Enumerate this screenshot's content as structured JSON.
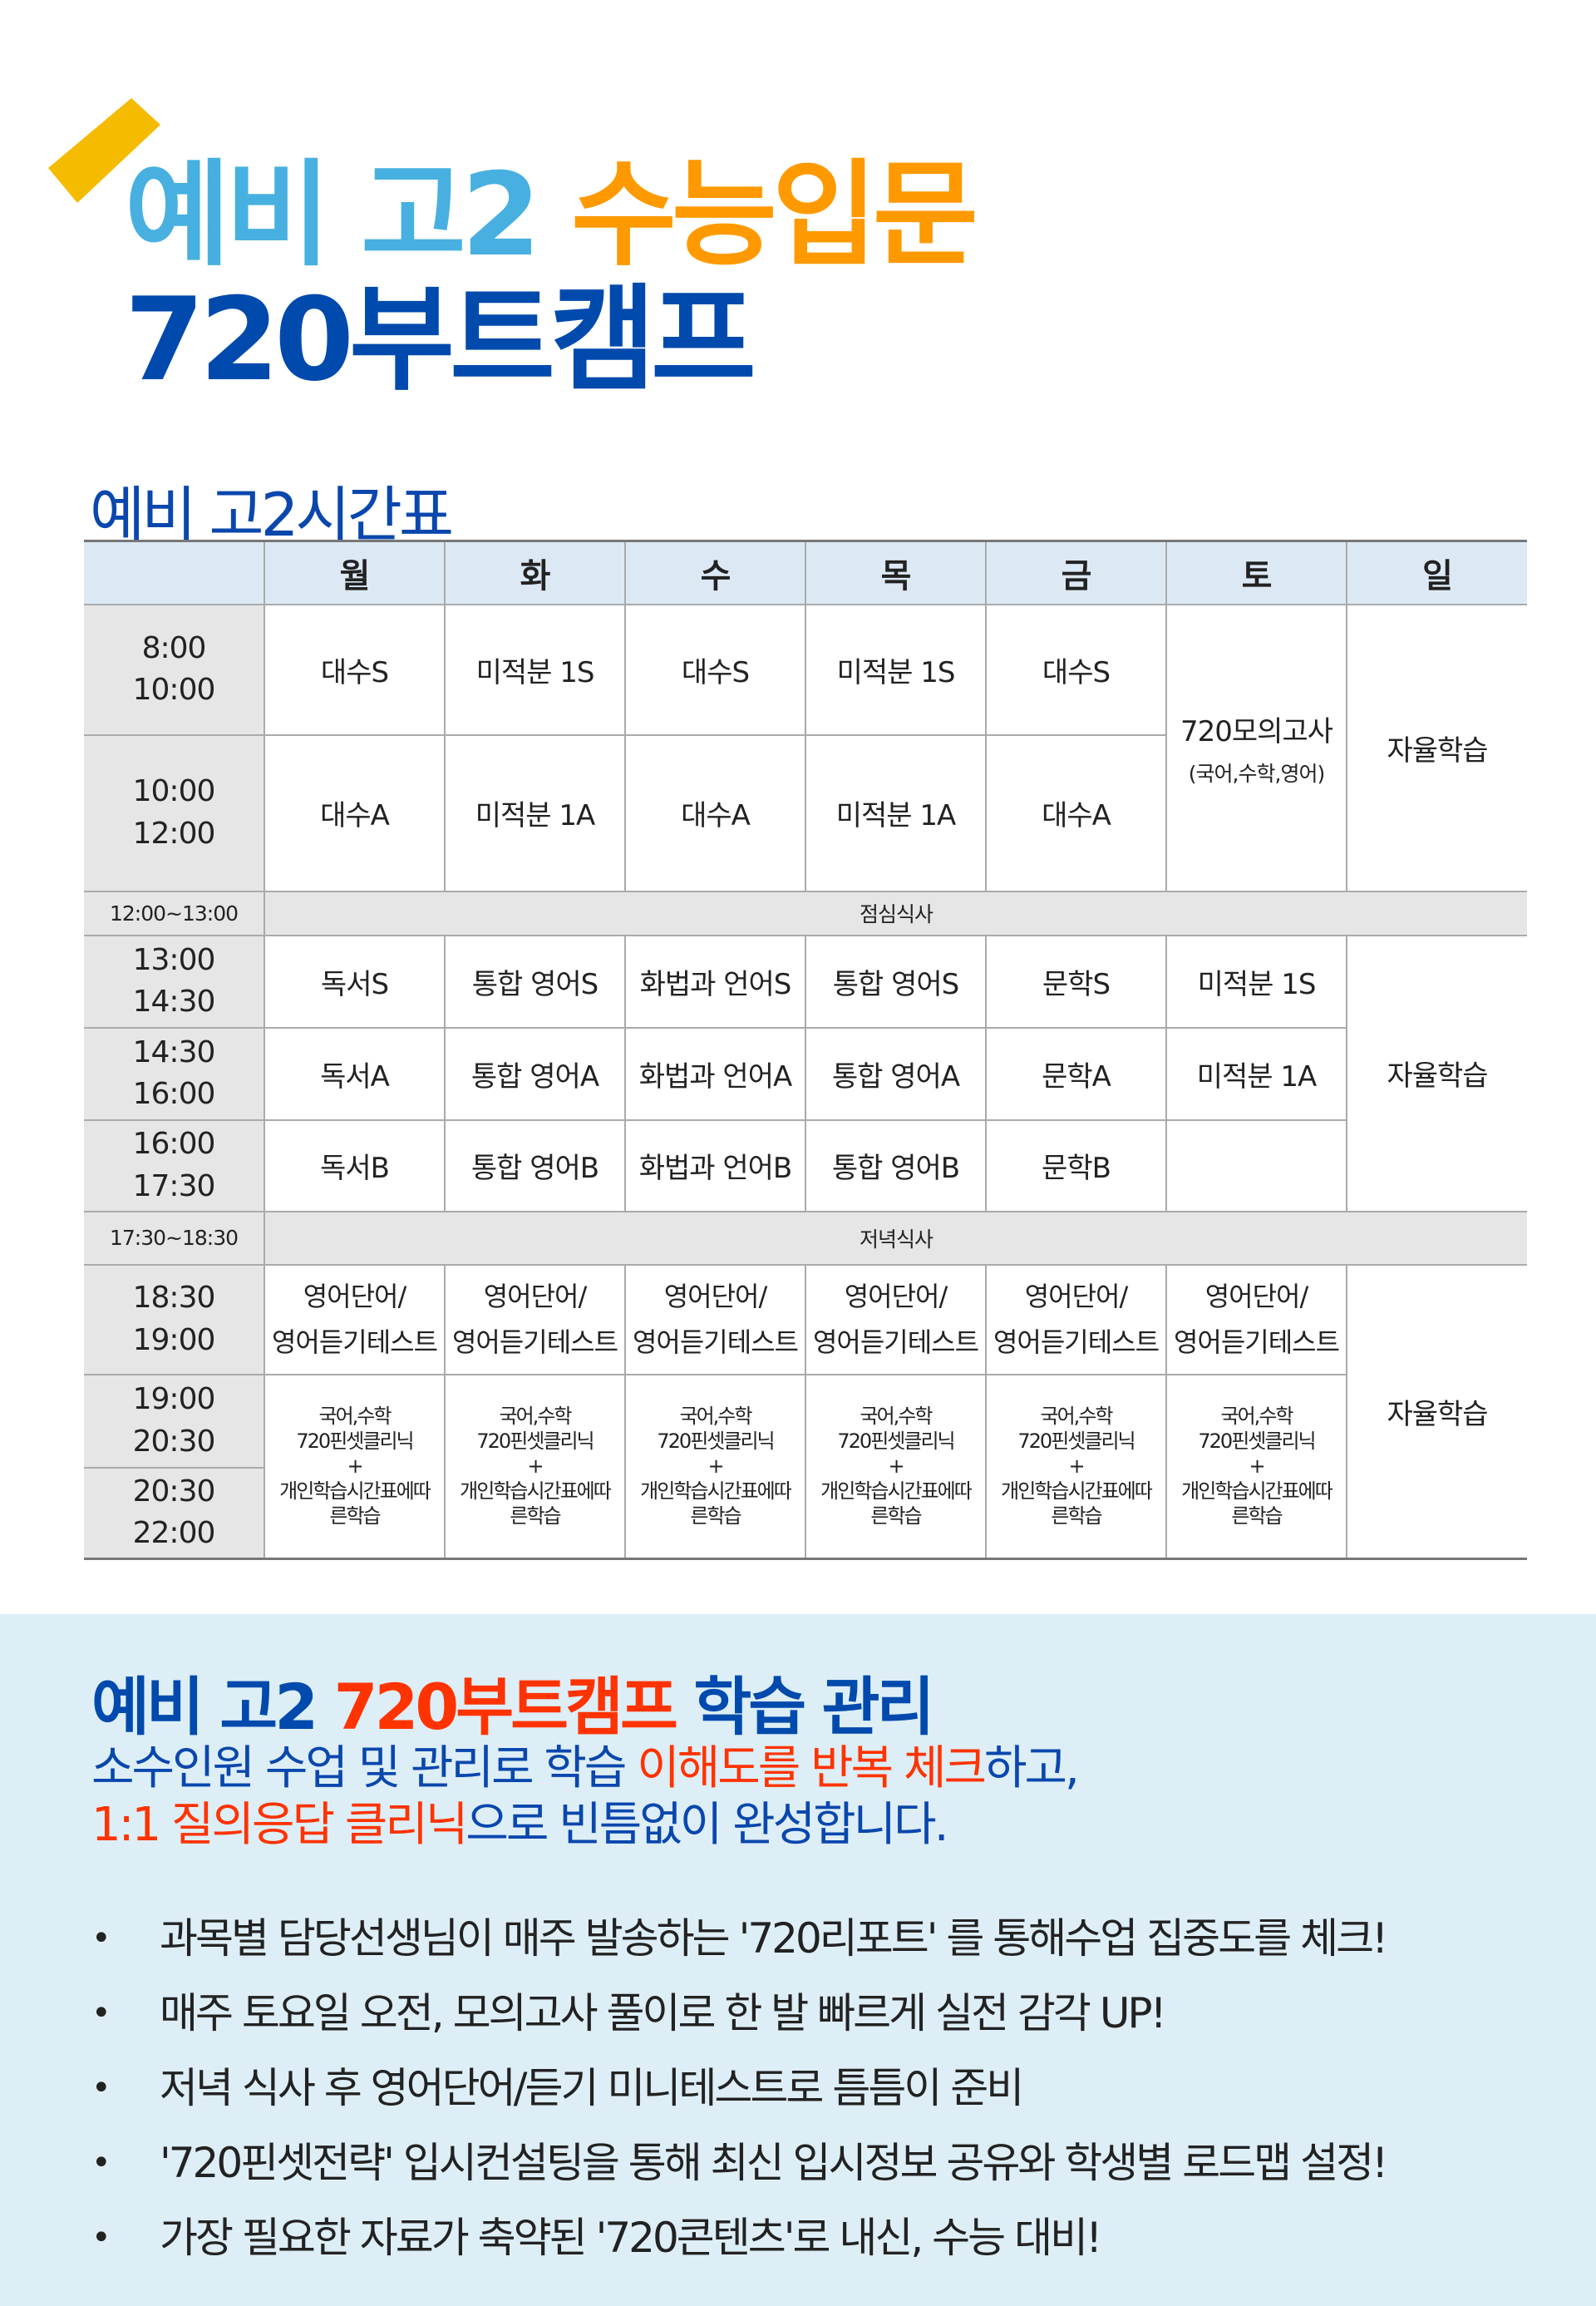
{
  "colors": {
    "accent_blue": "#004aad",
    "light_blue": "#48b0e0",
    "orange": "#ff9900",
    "red": "#ff3300",
    "tape": "#f5bb00"
  },
  "header": {
    "line1_a": "예비 고2",
    "line1_b": "수능입문",
    "line2": "720부트캠프"
  },
  "timetable": {
    "title": "예비 고2시간표",
    "days": [
      "월",
      "화",
      "수",
      "목",
      "금",
      "토",
      "일"
    ],
    "rows": {
      "r1": {
        "time": [
          "8:00",
          "10:00"
        ],
        "cells": [
          "대수S",
          "미적분 1S",
          "대수S",
          "미적분 1S",
          "대수S"
        ]
      },
      "r2": {
        "time": [
          "10:00",
          "12:00"
        ],
        "cells": [
          "대수A",
          "미적분 1A",
          "대수A",
          "미적분 1A",
          "대수A"
        ]
      },
      "sat_morning": {
        "main": "720모의고사",
        "sub": "(국어,수학,영어)"
      },
      "self_study": "자율학습",
      "lunch": {
        "time": "12:00~13:00",
        "label": "점심식사"
      },
      "r3": {
        "time": [
          "13:00",
          "14:30"
        ],
        "cells": [
          "독서S",
          "통합 영어S",
          "화법과 언어S",
          "통합 영어S",
          "문학S",
          "미적분 1S"
        ]
      },
      "r4": {
        "time": [
          "14:30",
          "16:00"
        ],
        "cells": [
          "독서A",
          "통합 영어A",
          "화법과 언어A",
          "통합 영어A",
          "문학A",
          "미적분 1A"
        ]
      },
      "r5": {
        "time": [
          "16:00",
          "17:30"
        ],
        "cells": [
          "독서B",
          "통합 영어B",
          "화법과 언어B",
          "통합 영어B",
          "문학B",
          ""
        ]
      },
      "dinner": {
        "time": "17:30~18:30",
        "label": "저녁식사"
      },
      "r6": {
        "time": [
          "18:30",
          "19:00"
        ],
        "line1": "영어단어/",
        "line2": "영어듣기테스트"
      },
      "r7": {
        "time": [
          "19:00",
          "20:30"
        ]
      },
      "r8": {
        "time": [
          "20:30",
          "22:00"
        ]
      },
      "clinic": {
        "l1": "국어,수학",
        "l2": "720핀셋클리닉",
        "l3": "+",
        "l4": "개인학습시간표에따",
        "l5": "른학습"
      }
    }
  },
  "management": {
    "heading_a": "예비 고2 ",
    "heading_b": "720부트캠프",
    "heading_c": " 학습 관리",
    "sub1_a": "소수인원 수업 및 관리로 학습 ",
    "sub1_b": "이해도를 반복 체크",
    "sub1_c": "하고,",
    "sub2_a": "1:1 질의응답 클리닉",
    "sub2_b": "으로 빈틈없이 완성합니다.",
    "bullets": [
      "과목별 담당선생님이 매주  발송하는 '720리포트' 를 통해수업 집중도를 체크!",
      "매주 토요일 오전, 모의고사 풀이로  한 발 빠르게 실전 감각 UP!",
      "저녁 식사 후 영어단어/듣기 미니테스트로 틈틈이 준비",
      "'720핀셋전략' 입시컨설팅을 통해  최신 입시정보 공유와 학생별 로드맵 설정!",
      "가장 필요한 자료가 축약된 '720콘텐츠'로 내신, 수능 대비!"
    ]
  }
}
